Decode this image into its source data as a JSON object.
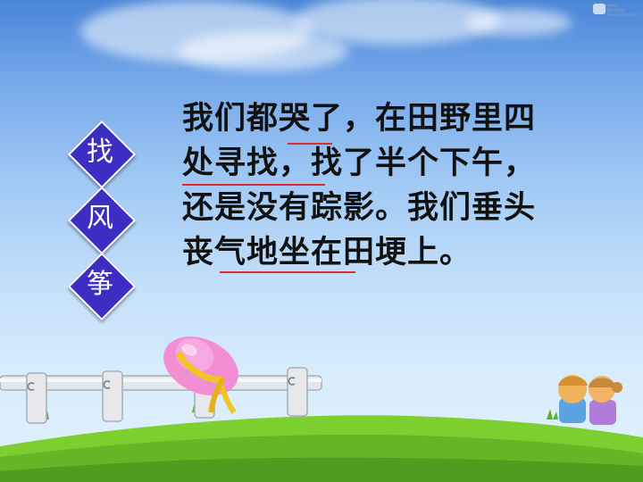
{
  "slide": {
    "watermark": {
      "brand_text": "课件站",
      "lines": [
        "教学资源网",
        "www.kjzhan.com"
      ]
    },
    "title_chars": [
      "找",
      "风",
      "筝"
    ],
    "passage_lines": [
      "我们都哭了，在田野里四",
      "处寻找，找了半个下午，",
      "还是没有踪影。我们垂头",
      "丧气地坐在田埂上。"
    ],
    "colors": {
      "diamond_fill": "#3c2ec2",
      "diamond_border": "#ffffff",
      "underline": "#e02b2b",
      "text": "#111111",
      "grass": "#6cc22a"
    },
    "icons": [
      "pink-hat-icon",
      "wooden-fence-icon",
      "children-icon",
      "grass-field-icon"
    ]
  }
}
